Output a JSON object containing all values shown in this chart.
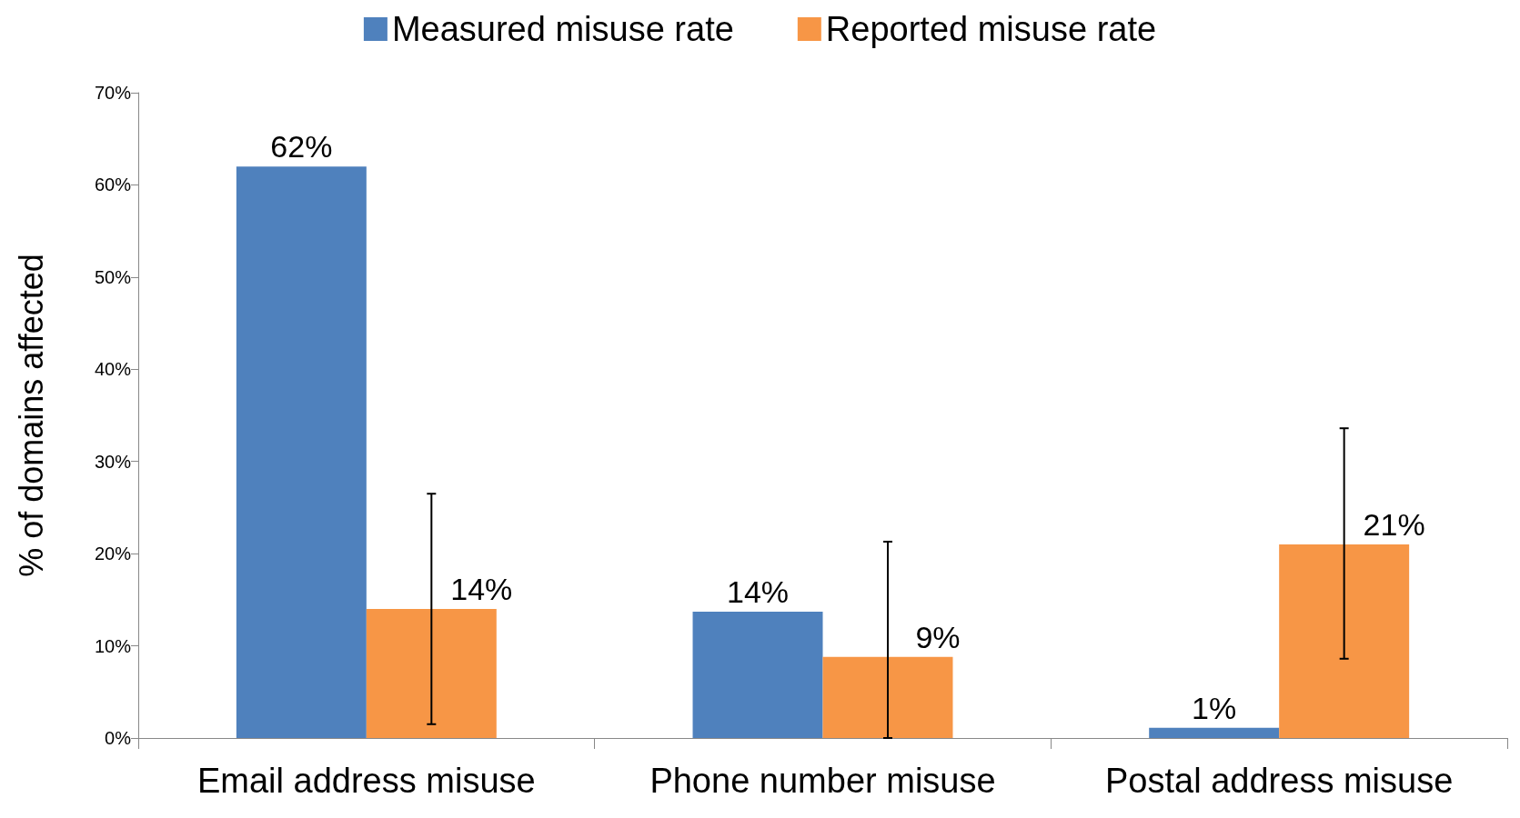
{
  "chart_data": {
    "type": "bar",
    "ylabel": "% of domains affected",
    "categories": [
      "Email address misuse",
      "Phone number misuse",
      "Postal address misuse"
    ],
    "series": [
      {
        "name": "Measured misuse rate",
        "color": "#4f81bd",
        "values": [
          62,
          13.7,
          1.1
        ],
        "value_labels": [
          "62%",
          "14%",
          "1%"
        ]
      },
      {
        "name": "Reported misuse rate",
        "color": "#f79646",
        "values": [
          14,
          8.8,
          21
        ],
        "value_labels": [
          "14%",
          "9%",
          "21%"
        ],
        "errors": [
          [
            1.5,
            26.5
          ],
          [
            0,
            21.3
          ],
          [
            8.6,
            33.6
          ]
        ]
      }
    ],
    "ylim": [
      0,
      70
    ],
    "yticks": [
      {
        "value": 0,
        "label": "0%"
      },
      {
        "value": 10,
        "label": "10%"
      },
      {
        "value": 20,
        "label": "20%"
      },
      {
        "value": 30,
        "label": "30%"
      },
      {
        "value": 40,
        "label": "40%"
      },
      {
        "value": 50,
        "label": "50%"
      },
      {
        "value": 60,
        "label": "60%"
      },
      {
        "value": 70,
        "label": "70%"
      }
    ],
    "grid": false,
    "legend": "top"
  }
}
